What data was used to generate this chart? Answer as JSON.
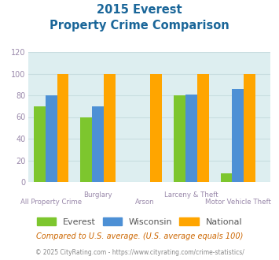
{
  "title_line1": "2015 Everest",
  "title_line2": "Property Crime Comparison",
  "categories": [
    "All Property Crime",
    "Burglary",
    "Arson",
    "Larceny & Theft",
    "Motor Vehicle Theft"
  ],
  "series": {
    "Everest": [
      70,
      60,
      0,
      80,
      8
    ],
    "Wisconsin": [
      80,
      70,
      0,
      81,
      86
    ],
    "National": [
      100,
      100,
      100,
      100,
      100
    ]
  },
  "colors": {
    "Everest": "#7dc62e",
    "Wisconsin": "#4d90d5",
    "National": "#ffa500"
  },
  "ylim": [
    0,
    120
  ],
  "yticks": [
    0,
    20,
    40,
    60,
    80,
    100,
    120
  ],
  "grid_color": "#c8dde0",
  "bg_color": "#ddeef0",
  "title_color": "#1a6699",
  "axis_label_color": "#9988aa",
  "legend_labels": [
    "Everest",
    "Wisconsin",
    "National"
  ],
  "footnote1": "Compared to U.S. average. (U.S. average equals 100)",
  "footnote2": "© 2025 CityRating.com - https://www.cityrating.com/crime-statistics/",
  "footnote1_color": "#cc6600",
  "footnote2_color": "#888888"
}
